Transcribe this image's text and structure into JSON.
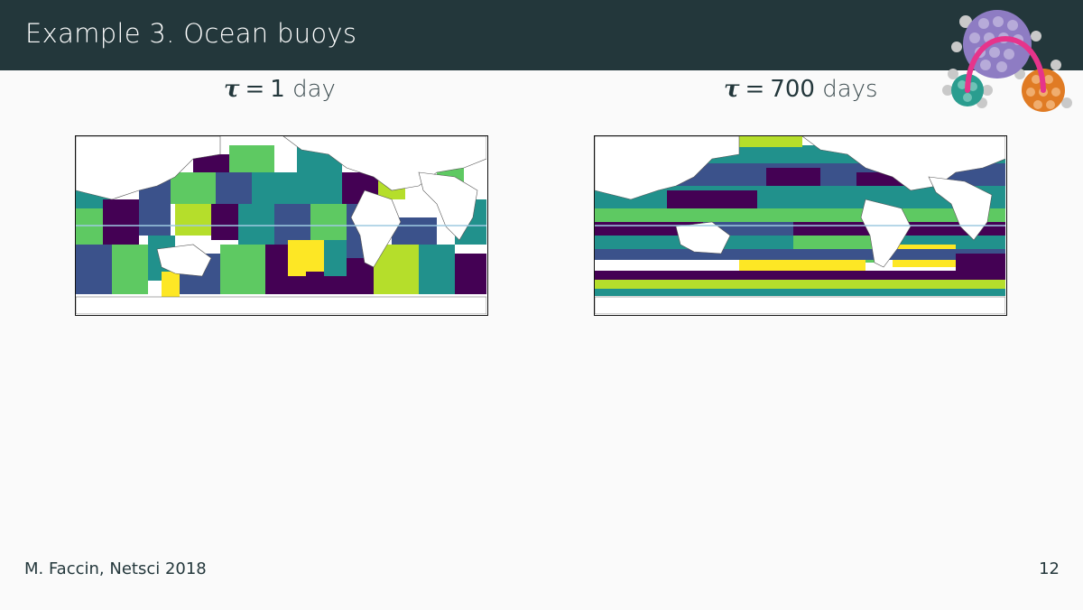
{
  "slide": {
    "title": "Example 3. Ocean buoys",
    "footer_author": "M. Faccin, Netsci 2018",
    "page_number": "12"
  },
  "panels": [
    {
      "symbol": "τ",
      "equals": "=",
      "value": "1",
      "unit": "day"
    },
    {
      "symbol": "τ",
      "equals": "=",
      "value": "700",
      "unit": "days"
    }
  ],
  "colors": {
    "header_bg": "#23373b",
    "background": "#fafafa",
    "viridis": [
      "#440154",
      "#3b528b",
      "#21918c",
      "#5ec962",
      "#b5de2b",
      "#fde725"
    ],
    "logo_purple": "#8e7cc3",
    "logo_green": "#2a9d8f",
    "logo_orange": "#e07b24",
    "logo_arc": "#e6348b"
  },
  "icons": {
    "logo": "network-communities-logo"
  }
}
